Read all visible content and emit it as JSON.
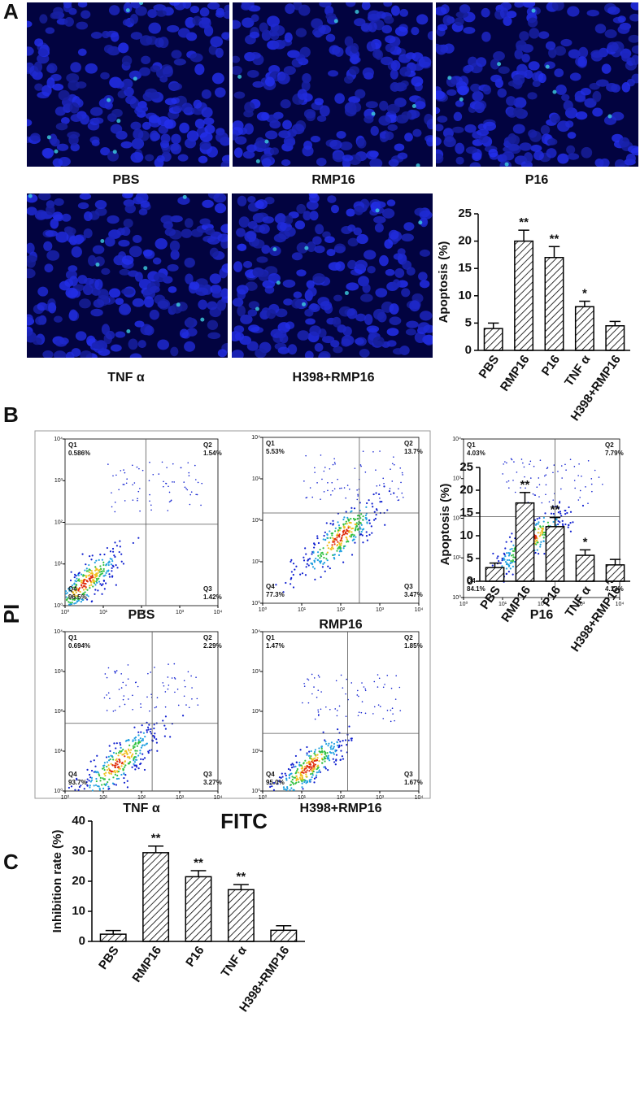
{
  "figure": {
    "panel_labels": [
      "A",
      "B",
      "C"
    ],
    "image_labels": [
      "PBS",
      "RMP16",
      "P16",
      "TNF α",
      "H398+RMP16"
    ],
    "y_axis_title": "PI",
    "x_axis_title": "FITC",
    "flow_ticks": [
      {
        "value": 1,
        "label": "10⁰"
      },
      {
        "value": 10,
        "label": "10¹"
      },
      {
        "value": 100,
        "label": "10²"
      },
      {
        "value": 1000,
        "label": "10³"
      },
      {
        "value": 10000,
        "label": "10⁴"
      }
    ],
    "flow_plots": [
      {
        "name": "PBS",
        "gate": [
          130,
          90
        ],
        "quadrants": [
          {
            "name": "Q1",
            "value": "0.586%"
          },
          {
            "name": "Q2",
            "value": "1.54%"
          },
          {
            "name": "Q3",
            "value": "1.42%"
          },
          {
            "name": "Q4",
            "value": "96.5%"
          }
        ]
      },
      {
        "name": "RMP16",
        "gate": [
          300,
          150
        ],
        "quadrants": [
          {
            "name": "Q1",
            "value": "5.53%"
          },
          {
            "name": "Q2",
            "value": "13.7%"
          },
          {
            "name": "Q3",
            "value": "3.47%"
          },
          {
            "name": "Q4",
            "value": "77.3%"
          }
        ]
      },
      {
        "name": "P16",
        "gate": [
          220,
          110
        ],
        "quadrants": [
          {
            "name": "Q1",
            "value": "4.03%"
          },
          {
            "name": "Q2",
            "value": "7.79%"
          },
          {
            "name": "Q3",
            "value": "4.13%"
          },
          {
            "name": "Q4",
            "value": "84.1%"
          }
        ]
      },
      {
        "name": "TNF α",
        "gate": [
          190,
          50
        ],
        "quadrants": [
          {
            "name": "Q1",
            "value": "0.694%"
          },
          {
            "name": "Q2",
            "value": "2.29%"
          },
          {
            "name": "Q3",
            "value": "3.27%"
          },
          {
            "name": "Q4",
            "value": "93.7%"
          }
        ]
      },
      {
        "name": "H398+RMP16",
        "gate": [
          150,
          28
        ],
        "quadrants": [
          {
            "name": "Q1",
            "value": "1.47%"
          },
          {
            "name": "Q2",
            "value": "1.85%"
          },
          {
            "name": "Q3",
            "value": "1.67%"
          },
          {
            "name": "Q4",
            "value": "95.0%"
          }
        ]
      }
    ]
  },
  "chart_data": [
    {
      "type": "bar",
      "ylabel": "Apoptosis (%)",
      "categories": [
        "PBS",
        "RMP16",
        "P16",
        "TNF α",
        "H398+RMP16"
      ],
      "values": [
        4,
        20,
        17,
        8,
        4.5
      ],
      "errors": [
        1,
        2,
        2,
        1,
        0.8
      ],
      "annotations": [
        null,
        "**",
        "**",
        "*",
        null
      ],
      "ylim": [
        0,
        25
      ],
      "yticks": [
        0,
        5,
        10,
        15,
        20,
        25
      ],
      "pattern": "hatch",
      "color": "#000000"
    },
    {
      "type": "bar",
      "ylabel": "Apoptosis (%)",
      "categories": [
        "PBS",
        "RMP16",
        "P16",
        "TNF α",
        "H398+RMP16"
      ],
      "values": [
        3,
        17.2,
        12,
        5.7,
        3.6
      ],
      "errors": [
        1,
        2.3,
        2,
        1.2,
        1.2
      ],
      "annotations": [
        null,
        "**",
        "**",
        "*",
        null
      ],
      "ylim": [
        0,
        25
      ],
      "yticks": [
        0,
        5,
        10,
        15,
        20,
        25
      ],
      "pattern": "hatch",
      "color": "#000000"
    },
    {
      "type": "bar",
      "ylabel": "Inhibition rate (%)",
      "categories": [
        "PBS",
        "RMP16",
        "P16",
        "TNF α",
        "H398+RMP16"
      ],
      "values": [
        2.4,
        29.5,
        21.5,
        17.2,
        3.7
      ],
      "errors": [
        1.2,
        2.2,
        2,
        1.7,
        1.5
      ],
      "annotations": [
        null,
        "**",
        "**",
        "**",
        null
      ],
      "ylim": [
        0,
        40
      ],
      "yticks": [
        0,
        10,
        20,
        30,
        40
      ],
      "pattern": "hatch",
      "color": "#000000"
    }
  ]
}
